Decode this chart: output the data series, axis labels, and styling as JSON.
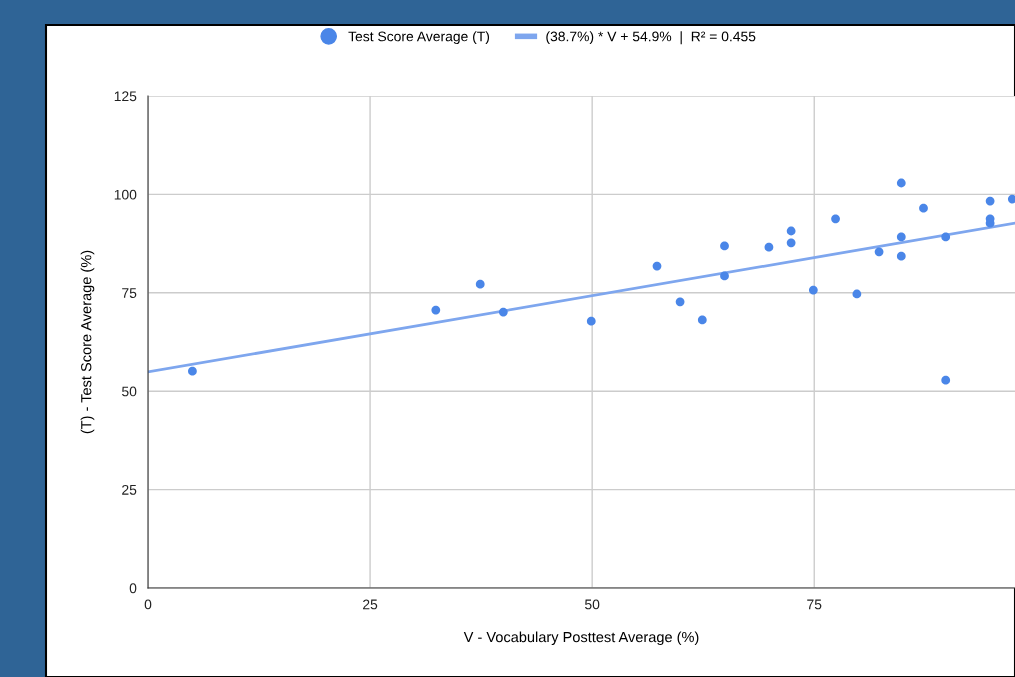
{
  "chart_data": {
    "type": "scatter",
    "xlabel": "V - Vocabulary Posttest Average (%)",
    "ylabel": "(T) - Test Score Average (%)",
    "xlim": [
      0,
      97.6
    ],
    "xticks": [
      0,
      25,
      50,
      75
    ],
    "ylim": [
      0,
      125
    ],
    "yticks": [
      0,
      25,
      50,
      75,
      100,
      125
    ],
    "grid": true,
    "legend": "top",
    "marker": "circle",
    "series": [
      {
        "name": "Test Score Average (T)",
        "color": "#4a86e8",
        "x": [
          5,
          32.4,
          37.4,
          40,
          49.9,
          57.3,
          59.9,
          62.4,
          64.9,
          64.9,
          69.9,
          72.4,
          72.4,
          74.9,
          77.4,
          79.8,
          82.3,
          84.8,
          84.8,
          84.8,
          87.3,
          89.8,
          89.8,
          94.8,
          94.8,
          94.8,
          97.3
        ],
        "values": [
          55.1,
          70.6,
          77.2,
          70.1,
          67.8,
          81.8,
          72.7,
          68.1,
          86.9,
          79.3,
          86.6,
          90.7,
          87.7,
          75.7,
          93.8,
          74.7,
          85.4,
          102.9,
          89.2,
          84.3,
          96.5,
          89.2,
          52.8,
          98.3,
          93.8,
          92.7,
          98.8
        ]
      },
      {
        "name": "(38.7%) * V + 54.9%  |  R² = 0.455",
        "color": "#7ea6ee",
        "type": "line",
        "marker": "none",
        "x": [
          0,
          97.6
        ],
        "values": [
          54.9,
          92.7
        ]
      }
    ]
  }
}
